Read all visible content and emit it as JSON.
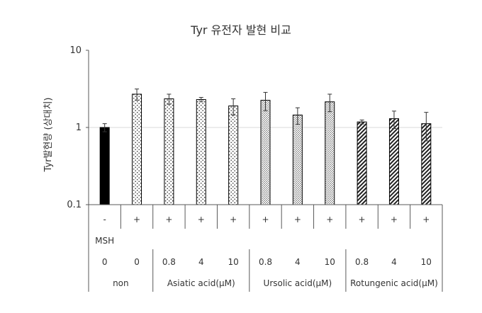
{
  "chart_data": {
    "type": "bar",
    "title": "Tyr 유전자 발현 비교",
    "ylabel": "Tyr발현량 (상대치)",
    "xlabel": "",
    "yscale": "log",
    "ylim": [
      0.1,
      10
    ],
    "yticks": [
      "0.1",
      "1",
      "10"
    ],
    "grid": "horizontal at 1",
    "legend": "none",
    "msh_row_label": "MSH",
    "categories": [
      {
        "msh": "-",
        "dose": "0",
        "group": "non",
        "value": 1.0,
        "error": 0.12,
        "pattern": "solid"
      },
      {
        "msh": "+",
        "dose": "0",
        "group": "non",
        "value": 2.7,
        "error": 0.45,
        "pattern": "dots-sparse"
      },
      {
        "msh": "+",
        "dose": "0.8",
        "group": "Asiatic acid(μM)",
        "value": 2.35,
        "error": 0.35,
        "pattern": "dots-sparse"
      },
      {
        "msh": "+",
        "dose": "4",
        "group": "Asiatic acid(μM)",
        "value": 2.3,
        "error": 0.15,
        "pattern": "dots-sparse"
      },
      {
        "msh": "+",
        "dose": "10",
        "group": "Asiatic acid(μM)",
        "value": 1.9,
        "error": 0.45,
        "pattern": "dots-sparse"
      },
      {
        "msh": "+",
        "dose": "0.8",
        "group": "Ursolic acid(μM)",
        "value": 2.25,
        "error": 0.6,
        "pattern": "dots-dense"
      },
      {
        "msh": "+",
        "dose": "4",
        "group": "Ursolic acid(μM)",
        "value": 1.45,
        "error": 0.35,
        "pattern": "dots-dense"
      },
      {
        "msh": "+",
        "dose": "10",
        "group": "Ursolic acid(μM)",
        "value": 2.15,
        "error": 0.55,
        "pattern": "dots-dense"
      },
      {
        "msh": "+",
        "dose": "0.8",
        "group": "Rotungenic acid(μM)",
        "value": 1.18,
        "error": 0.07,
        "pattern": "diagonal"
      },
      {
        "msh": "+",
        "dose": "4",
        "group": "Rotungenic acid(μM)",
        "value": 1.3,
        "error": 0.33,
        "pattern": "diagonal"
      },
      {
        "msh": "+",
        "dose": "10",
        "group": "Rotungenic acid(μM)",
        "value": 1.12,
        "error": 0.45,
        "pattern": "diagonal"
      }
    ],
    "groups": [
      {
        "label": "non",
        "count": 2
      },
      {
        "label": "Asiatic acid(μM)",
        "count": 3
      },
      {
        "label": "Ursolic acid(μM)",
        "count": 3
      },
      {
        "label": "Rotungenic acid(μM)",
        "count": 3
      }
    ],
    "colors": {
      "bar_stroke": "#000000",
      "grid": "#d9d9d9",
      "axis": "#595959",
      "text": "#333333"
    }
  }
}
